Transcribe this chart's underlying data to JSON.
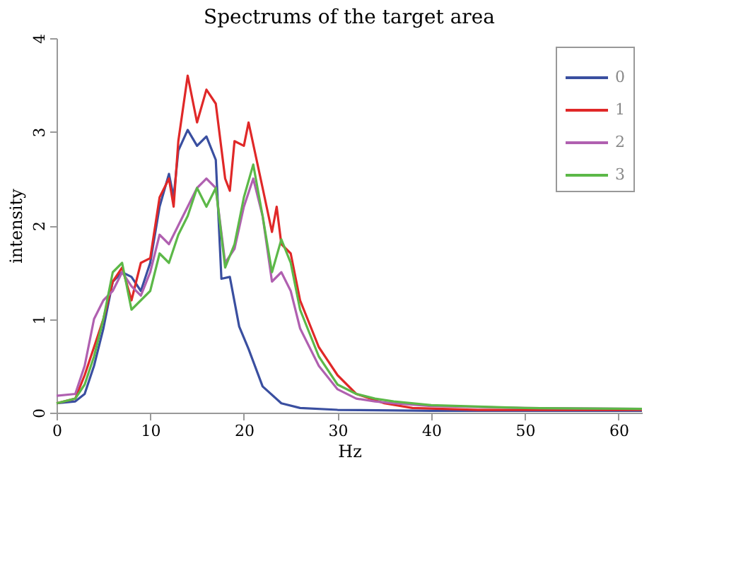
{
  "chart_data": {
    "type": "line",
    "title": "Spectrums of the target area",
    "xlabel": "Hz",
    "ylabel": "intensity",
    "xlim": [
      0,
      62.5
    ],
    "xticks": [
      0,
      10,
      20,
      30,
      40,
      50,
      60
    ],
    "ylim": [
      0,
      4
    ],
    "yticks": [
      0,
      1,
      2,
      3,
      4
    ],
    "grid": false,
    "legend": "top right",
    "marker": "none",
    "line_style": "solid",
    "series": [
      {
        "name": "0",
        "color": "#3a4fa0",
        "x": [
          0,
          2,
          3,
          4,
          5,
          6,
          7,
          8,
          9,
          10,
          11,
          12,
          12.5,
          13,
          14,
          15,
          16,
          17,
          17.6,
          18.5,
          19.5,
          20.5,
          22,
          24,
          26,
          30,
          40,
          50,
          62.5
        ],
        "values": [
          0.1,
          0.12,
          0.2,
          0.5,
          0.9,
          1.4,
          1.5,
          1.45,
          1.3,
          1.6,
          2.2,
          2.55,
          2.3,
          2.8,
          3.02,
          2.85,
          2.95,
          2.7,
          1.43,
          1.45,
          0.92,
          0.68,
          0.28,
          0.1,
          0.05,
          0.03,
          0.02,
          0.02,
          0.02
        ]
      },
      {
        "name": "1",
        "color": "#e02828",
        "x": [
          0,
          2,
          3,
          4,
          5,
          6,
          7,
          8,
          9,
          10,
          11,
          12,
          12.5,
          13,
          14,
          15,
          16,
          17,
          18,
          18.5,
          19,
          20,
          20.5,
          22,
          23,
          23.5,
          24,
          25,
          26,
          28,
          30,
          32,
          35,
          38,
          45,
          62.5
        ],
        "values": [
          0.1,
          0.15,
          0.4,
          0.7,
          1.0,
          1.4,
          1.55,
          1.2,
          1.6,
          1.65,
          2.3,
          2.5,
          2.2,
          2.9,
          3.6,
          3.1,
          3.45,
          3.3,
          2.5,
          2.37,
          2.9,
          2.85,
          3.1,
          2.4,
          1.93,
          2.2,
          1.8,
          1.7,
          1.2,
          0.7,
          0.4,
          0.2,
          0.1,
          0.05,
          0.03,
          0.03
        ]
      },
      {
        "name": "2",
        "color": "#b060b0",
        "x": [
          0,
          2,
          3,
          4,
          5,
          6,
          7,
          8,
          9,
          10,
          11,
          12,
          13,
          14,
          15,
          16,
          17,
          18,
          19,
          20,
          21,
          22,
          23,
          24,
          25,
          26,
          28,
          30,
          32,
          34,
          36,
          40,
          50,
          62.5
        ],
        "values": [
          0.18,
          0.2,
          0.5,
          1.0,
          1.2,
          1.3,
          1.5,
          1.35,
          1.25,
          1.5,
          1.9,
          1.8,
          2.0,
          2.2,
          2.4,
          2.5,
          2.4,
          1.6,
          1.75,
          2.2,
          2.5,
          2.1,
          1.4,
          1.5,
          1.3,
          0.9,
          0.5,
          0.25,
          0.15,
          0.12,
          0.1,
          0.07,
          0.05,
          0.04
        ]
      },
      {
        "name": "3",
        "color": "#5cb848",
        "x": [
          0,
          2,
          3,
          4,
          5,
          6,
          7,
          8,
          9,
          10,
          11,
          12,
          13,
          14,
          15,
          16,
          17,
          18,
          19,
          20,
          21,
          22,
          23,
          24,
          25,
          26,
          28,
          30,
          32,
          34,
          36,
          40,
          50,
          62.5
        ],
        "values": [
          0.1,
          0.15,
          0.3,
          0.6,
          1.0,
          1.5,
          1.6,
          1.1,
          1.2,
          1.3,
          1.7,
          1.6,
          1.9,
          2.1,
          2.4,
          2.2,
          2.4,
          1.55,
          1.8,
          2.3,
          2.65,
          2.1,
          1.5,
          1.85,
          1.6,
          1.1,
          0.6,
          0.3,
          0.2,
          0.15,
          0.12,
          0.08,
          0.05,
          0.04
        ]
      }
    ]
  }
}
